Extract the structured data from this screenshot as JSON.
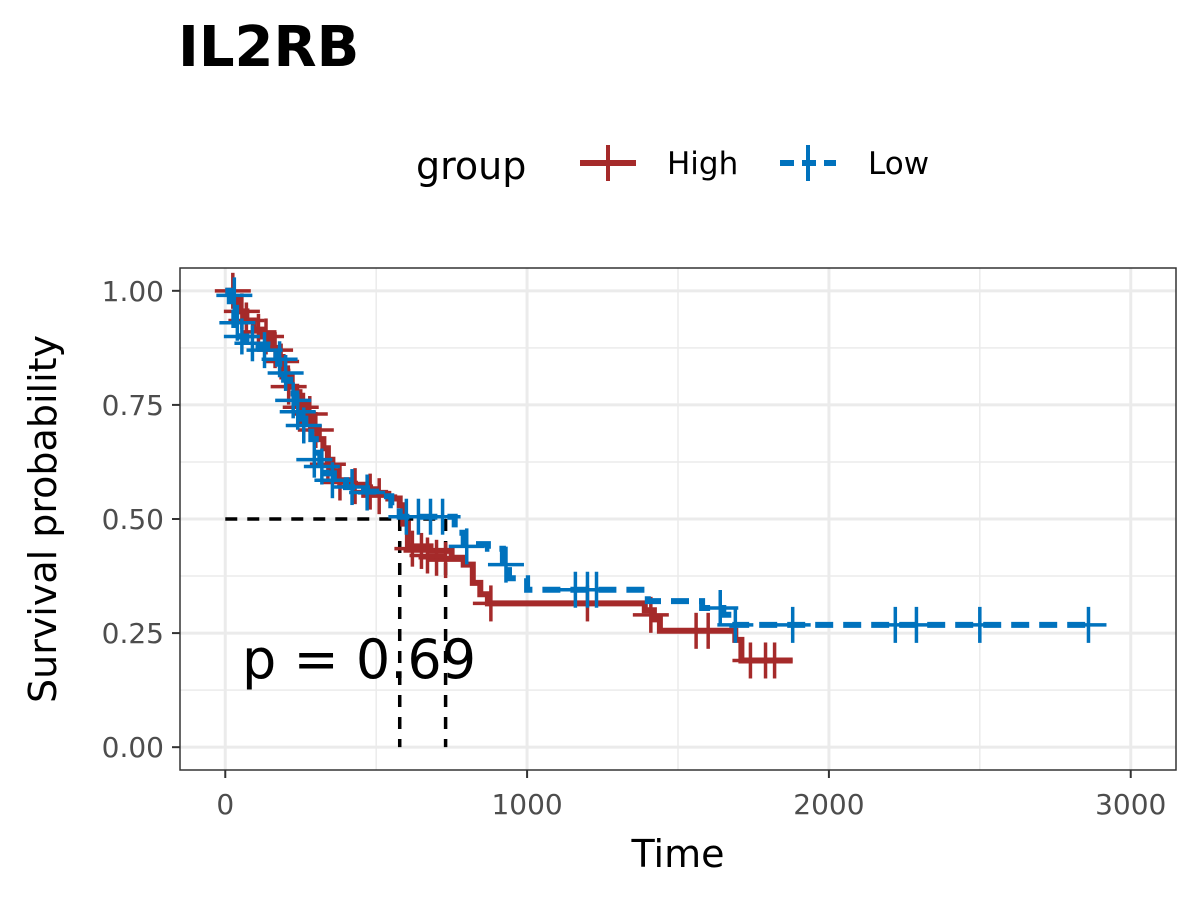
{
  "title": "IL2RB",
  "legend": {
    "title": "group",
    "placement": "top",
    "entries": [
      {
        "label": "High",
        "color": "#A52A2A",
        "dash": "solid"
      },
      {
        "label": "Low",
        "color": "#0072BD",
        "dash": "dashed"
      }
    ]
  },
  "p_value_text": "p = 0.69",
  "chart_data": {
    "type": "line",
    "subtype": "kaplan-meier",
    "title": "IL2RB",
    "xlabel": "Time",
    "ylabel": "Survival probability",
    "xlim": [
      -150,
      3150
    ],
    "ylim": [
      -0.05,
      1.05
    ],
    "x_ticks": [
      0,
      1000,
      2000,
      3000
    ],
    "x_tick_labels": [
      "0",
      "1000",
      "2000",
      "3000"
    ],
    "y_ticks": [
      0,
      0.25,
      0.5,
      0.75,
      1.0
    ],
    "y_tick_labels": [
      "0.00",
      "0.25",
      "0.50",
      "0.75",
      "1.00"
    ],
    "grid": true,
    "median_line": {
      "y": 0.5,
      "x": [
        578,
        730
      ]
    },
    "annotation": "p = 0.69",
    "series": [
      {
        "name": "High",
        "color": "#A52A2A",
        "dash": "solid",
        "steps": [
          [
            0,
            1.0
          ],
          [
            20,
            0.985
          ],
          [
            45,
            0.955
          ],
          [
            70,
            0.935
          ],
          [
            95,
            0.915
          ],
          [
            125,
            0.9
          ],
          [
            150,
            0.875
          ],
          [
            170,
            0.855
          ],
          [
            190,
            0.83
          ],
          [
            205,
            0.81
          ],
          [
            220,
            0.79
          ],
          [
            235,
            0.77
          ],
          [
            255,
            0.75
          ],
          [
            270,
            0.73
          ],
          [
            290,
            0.7
          ],
          [
            310,
            0.675
          ],
          [
            325,
            0.655
          ],
          [
            340,
            0.63
          ],
          [
            355,
            0.605
          ],
          [
            375,
            0.585
          ],
          [
            410,
            0.575
          ],
          [
            460,
            0.565
          ],
          [
            500,
            0.555
          ],
          [
            540,
            0.545
          ],
          [
            578,
            0.53
          ],
          [
            590,
            0.49
          ],
          [
            605,
            0.44
          ],
          [
            680,
            0.43
          ],
          [
            750,
            0.415
          ],
          [
            790,
            0.4
          ],
          [
            820,
            0.36
          ],
          [
            845,
            0.335
          ],
          [
            870,
            0.315
          ],
          [
            1390,
            0.3
          ],
          [
            1420,
            0.28
          ],
          [
            1440,
            0.255
          ],
          [
            1690,
            0.235
          ],
          [
            1710,
            0.19
          ],
          [
            1880,
            0.19
          ]
        ],
        "censored": [
          [
            25,
            1.0
          ],
          [
            55,
            0.955
          ],
          [
            70,
            0.935
          ],
          [
            110,
            0.91
          ],
          [
            135,
            0.9
          ],
          [
            165,
            0.87
          ],
          [
            185,
            0.845
          ],
          [
            210,
            0.79
          ],
          [
            250,
            0.745
          ],
          [
            280,
            0.73
          ],
          [
            300,
            0.695
          ],
          [
            340,
            0.62
          ],
          [
            380,
            0.58
          ],
          [
            430,
            0.572
          ],
          [
            480,
            0.56
          ],
          [
            510,
            0.55
          ],
          [
            620,
            0.435
          ],
          [
            650,
            0.43
          ],
          [
            670,
            0.42
          ],
          [
            700,
            0.415
          ],
          [
            730,
            0.41
          ],
          [
            880,
            0.315
          ],
          [
            1200,
            0.315
          ],
          [
            1410,
            0.29
          ],
          [
            1560,
            0.255
          ],
          [
            1600,
            0.255
          ],
          [
            1740,
            0.19
          ],
          [
            1790,
            0.19
          ],
          [
            1820,
            0.19
          ]
        ]
      },
      {
        "name": "Low",
        "color": "#0072BD",
        "dash": "dashed",
        "steps": [
          [
            0,
            1.0
          ],
          [
            15,
            0.96
          ],
          [
            30,
            0.925
          ],
          [
            45,
            0.9
          ],
          [
            70,
            0.89
          ],
          [
            110,
            0.875
          ],
          [
            150,
            0.86
          ],
          [
            175,
            0.84
          ],
          [
            195,
            0.805
          ],
          [
            215,
            0.775
          ],
          [
            235,
            0.74
          ],
          [
            250,
            0.72
          ],
          [
            265,
            0.7
          ],
          [
            285,
            0.675
          ],
          [
            300,
            0.645
          ],
          [
            315,
            0.62
          ],
          [
            335,
            0.6
          ],
          [
            360,
            0.585
          ],
          [
            400,
            0.57
          ],
          [
            450,
            0.56
          ],
          [
            500,
            0.55
          ],
          [
            550,
            0.53
          ],
          [
            578,
            0.505
          ],
          [
            730,
            0.505
          ],
          [
            760,
            0.47
          ],
          [
            790,
            0.445
          ],
          [
            870,
            0.435
          ],
          [
            920,
            0.4
          ],
          [
            940,
            0.37
          ],
          [
            1000,
            0.345
          ],
          [
            1340,
            0.345
          ],
          [
            1400,
            0.32
          ],
          [
            1580,
            0.305
          ],
          [
            1650,
            0.29
          ],
          [
            1680,
            0.268
          ],
          [
            2880,
            0.268
          ]
        ],
        "censored": [
          [
            30,
            0.99
          ],
          [
            40,
            0.93
          ],
          [
            55,
            0.9
          ],
          [
            90,
            0.885
          ],
          [
            130,
            0.87
          ],
          [
            180,
            0.85
          ],
          [
            200,
            0.82
          ],
          [
            225,
            0.76
          ],
          [
            240,
            0.735
          ],
          [
            260,
            0.705
          ],
          [
            295,
            0.63
          ],
          [
            320,
            0.615
          ],
          [
            355,
            0.585
          ],
          [
            420,
            0.57
          ],
          [
            470,
            0.558
          ],
          [
            600,
            0.505
          ],
          [
            640,
            0.505
          ],
          [
            680,
            0.505
          ],
          [
            720,
            0.505
          ],
          [
            800,
            0.44
          ],
          [
            930,
            0.4
          ],
          [
            1160,
            0.345
          ],
          [
            1200,
            0.345
          ],
          [
            1230,
            0.345
          ],
          [
            1640,
            0.305
          ],
          [
            1690,
            0.268
          ],
          [
            1880,
            0.268
          ],
          [
            2220,
            0.268
          ],
          [
            2290,
            0.268
          ],
          [
            2500,
            0.268
          ],
          [
            2860,
            0.268
          ]
        ]
      }
    ]
  }
}
